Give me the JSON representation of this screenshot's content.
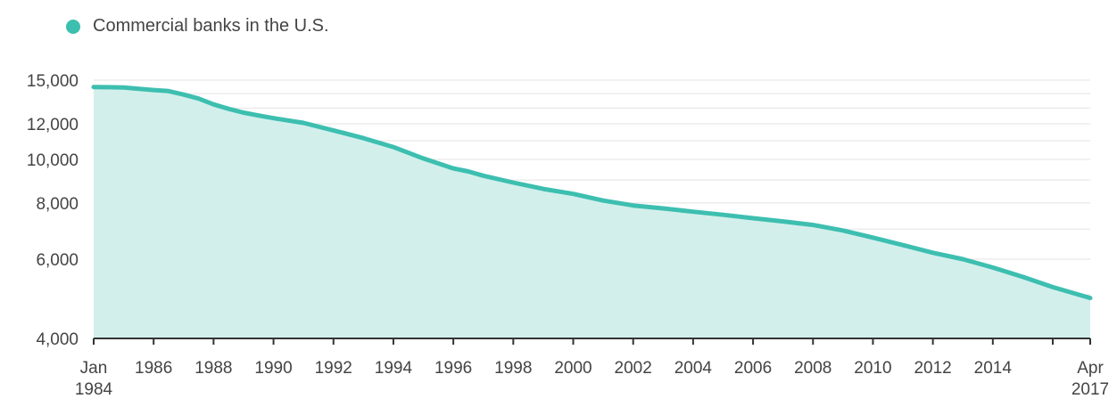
{
  "chart_data": {
    "type": "area",
    "legend": [
      {
        "label": "Commercial banks in the U.S.",
        "color": "#3dbfb0"
      }
    ],
    "series": [
      {
        "name": "Commercial banks in the U.S.",
        "color": "#3dbfb0",
        "fill": "#d3efec",
        "points": [
          [
            1984.0,
            14480
          ],
          [
            1985.0,
            14450
          ],
          [
            1986.0,
            14260
          ],
          [
            1986.5,
            14180
          ],
          [
            1987.0,
            13930
          ],
          [
            1987.5,
            13650
          ],
          [
            1988.0,
            13250
          ],
          [
            1988.5,
            12950
          ],
          [
            1989.0,
            12700
          ],
          [
            1989.5,
            12520
          ],
          [
            1990.0,
            12350
          ],
          [
            1991.0,
            12050
          ],
          [
            1992.0,
            11600
          ],
          [
            1993.0,
            11150
          ],
          [
            1994.0,
            10650
          ],
          [
            1995.0,
            10050
          ],
          [
            1996.0,
            9550
          ],
          [
            1996.5,
            9400
          ],
          [
            1997.0,
            9200
          ],
          [
            1998.0,
            8880
          ],
          [
            1999.0,
            8600
          ],
          [
            2000.0,
            8380
          ],
          [
            2001.0,
            8100
          ],
          [
            2002.0,
            7900
          ],
          [
            2003.0,
            7780
          ],
          [
            2004.0,
            7650
          ],
          [
            2005.0,
            7530
          ],
          [
            2006.0,
            7400
          ],
          [
            2007.0,
            7280
          ],
          [
            2008.0,
            7150
          ],
          [
            2009.0,
            6950
          ],
          [
            2010.0,
            6700
          ],
          [
            2011.0,
            6450
          ],
          [
            2012.0,
            6200
          ],
          [
            2013.0,
            6000
          ],
          [
            2014.0,
            5750
          ],
          [
            2015.0,
            5480
          ],
          [
            2016.0,
            5200
          ],
          [
            2017.25,
            4920
          ]
        ]
      }
    ],
    "y_axis": {
      "ticks": [
        {
          "value": 4000,
          "label": "4,000"
        },
        {
          "value": 6000,
          "label": "6,000"
        },
        {
          "value": 8000,
          "label": "8,000"
        },
        {
          "value": 10000,
          "label": "10,000"
        },
        {
          "value": 12000,
          "label": "12,000"
        },
        {
          "value": 15000,
          "label": "15,000"
        }
      ],
      "gridlines": [
        4000,
        5000,
        6000,
        7000,
        8000,
        9000,
        10000,
        11000,
        12000,
        13000,
        14000,
        15000
      ]
    },
    "x_axis": {
      "range": [
        1984,
        2017.25
      ],
      "ticks": [
        {
          "value": 1984,
          "label": [
            "Jan",
            "1984"
          ]
        },
        {
          "value": 1986,
          "label": [
            "1986"
          ]
        },
        {
          "value": 1988,
          "label": [
            "1988"
          ]
        },
        {
          "value": 1990,
          "label": [
            "1990"
          ]
        },
        {
          "value": 1992,
          "label": [
            "1992"
          ]
        },
        {
          "value": 1994,
          "label": [
            "1994"
          ]
        },
        {
          "value": 1996,
          "label": [
            "1996"
          ]
        },
        {
          "value": 1998,
          "label": [
            "1998"
          ]
        },
        {
          "value": 2000,
          "label": [
            "2000"
          ]
        },
        {
          "value": 2002,
          "label": [
            "2002"
          ]
        },
        {
          "value": 2004,
          "label": [
            "2004"
          ]
        },
        {
          "value": 2006,
          "label": [
            "2006"
          ]
        },
        {
          "value": 2008,
          "label": [
            "2008"
          ]
        },
        {
          "value": 2010,
          "label": [
            "2010"
          ]
        },
        {
          "value": 2012,
          "label": [
            "2012"
          ]
        },
        {
          "value": 2014,
          "label": [
            "2014"
          ]
        },
        {
          "value": 2016,
          "label": []
        },
        {
          "value": 2017.25,
          "label": [
            "Apr",
            "2017"
          ]
        }
      ]
    },
    "grid": true,
    "legend_position": "top-left"
  }
}
